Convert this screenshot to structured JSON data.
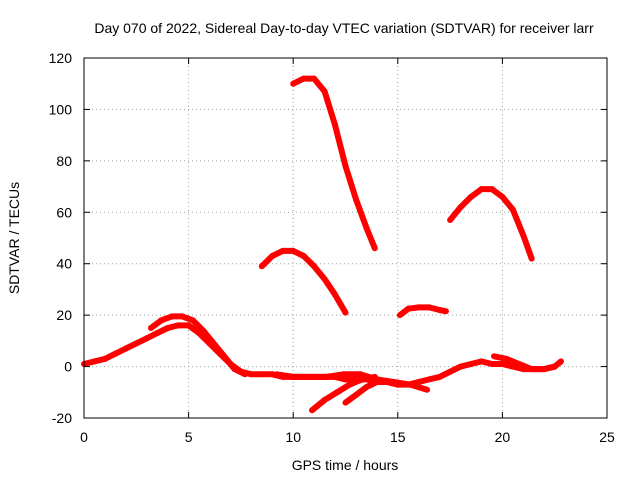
{
  "chart_data": {
    "type": "scatter",
    "title": "Day 070 of 2022, Sidereal Day-to-day VTEC variation (SDTVAR) for receiver larr",
    "xlabel": "GPS time / hours",
    "ylabel": "SDTVAR / TECUs",
    "xlim": [
      0,
      25
    ],
    "ylim": [
      -20,
      120
    ],
    "xticks": [
      0,
      5,
      10,
      15,
      20,
      25
    ],
    "yticks": [
      -20,
      0,
      20,
      40,
      60,
      80,
      100,
      120
    ],
    "grid": true,
    "series_color": "#ff0000",
    "series": [
      {
        "name": "track-1",
        "x": [
          0,
          0.5,
          1,
          1.5,
          2,
          2.5,
          3,
          3.5,
          4,
          4.5,
          5,
          5.5,
          6,
          6.5,
          7,
          7.5,
          8,
          8.5,
          9,
          9.5,
          10,
          10.5,
          11,
          11.5,
          12,
          12.5,
          13,
          13.5,
          14,
          14.5,
          15,
          15.5,
          16,
          16.5,
          17,
          17.5,
          18,
          18.5,
          19,
          19.5,
          20,
          20.5,
          21,
          21.5,
          22,
          22.5,
          22.8
        ],
        "y": [
          1,
          2,
          3,
          5,
          7,
          9,
          11,
          13,
          15,
          16,
          16,
          13,
          9,
          5,
          1,
          -2,
          -3,
          -3,
          -3,
          -4,
          -4,
          -4,
          -4,
          -4,
          -4,
          -5,
          -5,
          -5,
          -6,
          -6,
          -7,
          -7,
          -6,
          -5,
          -4,
          -2,
          0,
          1,
          2,
          1,
          1,
          0,
          -1,
          -1,
          -1,
          0,
          2
        ]
      },
      {
        "name": "track-2",
        "x": [
          3.2,
          3.7,
          4.2,
          4.7,
          5.2,
          5.7,
          6.2,
          6.7,
          7.2,
          7.7
        ],
        "y": [
          15,
          18,
          19.5,
          19.5,
          18,
          14,
          9,
          4,
          -1,
          -3
        ]
      },
      {
        "name": "track-3",
        "x": [
          9.2,
          10,
          10.8,
          11.6,
          12.4,
          13.2,
          14,
          14.8,
          15.6,
          16.4
        ],
        "y": [
          -3,
          -4,
          -4,
          -4,
          -3,
          -3,
          -5,
          -6,
          -7,
          -9
        ]
      },
      {
        "name": "track-4",
        "x": [
          10.9,
          11.5,
          12.1,
          12.7,
          13.3,
          13.9
        ],
        "y": [
          -17,
          -13,
          -10,
          -7,
          -5,
          -4
        ]
      },
      {
        "name": "track-5",
        "x": [
          12.5,
          13,
          13.5,
          14,
          14.5,
          15
        ],
        "y": [
          -14,
          -11,
          -8,
          -6,
          -6,
          -7
        ]
      },
      {
        "name": "track-6",
        "x": [
          19.6,
          20.2,
          20.8,
          21.4,
          22,
          22.5
        ],
        "y": [
          4,
          3,
          1,
          -1,
          -1,
          0
        ]
      },
      {
        "name": "arc-1",
        "x": [
          10,
          10.5,
          11,
          11.5,
          12,
          12.5,
          13,
          13.5,
          13.9
        ],
        "y": [
          110,
          112,
          112,
          107,
          94,
          78,
          65,
          54,
          46
        ]
      },
      {
        "name": "arc-2",
        "x": [
          8.5,
          9,
          9.5,
          10,
          10.5,
          11,
          11.5,
          12,
          12.5
        ],
        "y": [
          39,
          43,
          45,
          45,
          43,
          39,
          34,
          28,
          21
        ]
      },
      {
        "name": "arc-3",
        "x": [
          17.5,
          18,
          18.5,
          19,
          19.5,
          20,
          20.5,
          21,
          21.4
        ],
        "y": [
          57,
          62,
          66,
          69,
          69,
          66,
          61,
          51,
          42
        ]
      },
      {
        "name": "arc-4",
        "x": [
          15.1,
          15.5,
          16,
          16.5,
          17,
          17.3
        ],
        "y": [
          20,
          22.5,
          23,
          23,
          22,
          21.5
        ]
      }
    ]
  }
}
